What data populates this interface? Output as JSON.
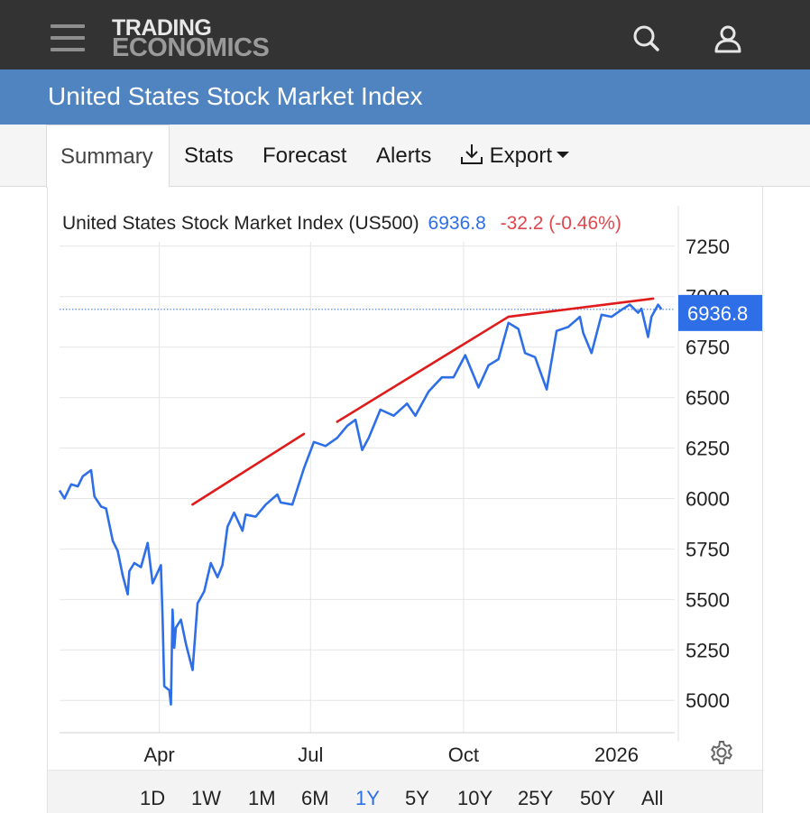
{
  "header": {
    "logo_line1": "TRADING",
    "logo_line2": "ECONOMICS",
    "menu_icon": "hamburger-menu-icon",
    "search_icon": "search-icon",
    "user_icon": "user-icon"
  },
  "title": "United States Stock Market Index",
  "tabs": [
    {
      "label": "Summary",
      "active": true
    },
    {
      "label": "Stats",
      "active": false
    },
    {
      "label": "Forecast",
      "active": false
    },
    {
      "label": "Alerts",
      "active": false
    },
    {
      "label": "Export",
      "active": false,
      "icon": "download-icon",
      "dropdown": true
    }
  ],
  "legend": {
    "name": "United States Stock Market Index (US500)",
    "last": "6936.8",
    "change": "-32.2 (-0.46%)"
  },
  "colors": {
    "series": "#2e6fe8",
    "trendlines": "#e01b1b",
    "negative_change": "#e0464c",
    "header_bg": "#333333",
    "title_bg": "#4f84c0",
    "price_tag_bg": "#2e6fe8"
  },
  "chart_data": {
    "type": "line",
    "series": [
      {
        "x": [
          "2025-01-31",
          "2025-02-03",
          "2025-02-07",
          "2025-02-11",
          "2025-02-14",
          "2025-02-19",
          "2025-02-21",
          "2025-02-25",
          "2025-02-28",
          "2025-03-04",
          "2025-03-07",
          "2025-03-10",
          "2025-03-13",
          "2025-03-14",
          "2025-03-17",
          "2025-03-21",
          "2025-03-25",
          "2025-03-28",
          "2025-04-02",
          "2025-04-03",
          "2025-04-04",
          "2025-04-07",
          "2025-04-08",
          "2025-04-09",
          "2025-04-10",
          "2025-04-11",
          "2025-04-14",
          "2025-04-17",
          "2025-04-21",
          "2025-04-24",
          "2025-04-28",
          "2025-05-02",
          "2025-05-06",
          "2025-05-09",
          "2025-05-12",
          "2025-05-16",
          "2025-05-21",
          "2025-05-23",
          "2025-05-29",
          "2025-06-04",
          "2025-06-11",
          "2025-06-13",
          "2025-06-20",
          "2025-06-27",
          "2025-07-03",
          "2025-07-10",
          "2025-07-17",
          "2025-07-23",
          "2025-07-28",
          "2025-08-01",
          "2025-08-05",
          "2025-08-12",
          "2025-08-20",
          "2025-08-28",
          "2025-09-02",
          "2025-09-10",
          "2025-09-18",
          "2025-09-25",
          "2025-10-02",
          "2025-10-10",
          "2025-10-16",
          "2025-10-22",
          "2025-10-28",
          "2025-11-03",
          "2025-11-07",
          "2025-11-13",
          "2025-11-20",
          "2025-11-26",
          "2025-12-03",
          "2025-12-10",
          "2025-12-12",
          "2025-12-17",
          "2025-12-23",
          "2025-12-29",
          "2026-01-05",
          "2026-01-09",
          "2026-01-14",
          "2026-01-16",
          "2026-01-20",
          "2026-01-22",
          "2026-01-26",
          "2026-01-28"
        ],
        "y": [
          6040,
          6000,
          6070,
          6060,
          6110,
          6140,
          6010,
          5960,
          5950,
          5790,
          5740,
          5620,
          5525,
          5640,
          5680,
          5660,
          5780,
          5580,
          5670,
          5400,
          5070,
          5050,
          4980,
          5450,
          5260,
          5360,
          5400,
          5280,
          5150,
          5480,
          5540,
          5680,
          5610,
          5670,
          5860,
          5930,
          5840,
          5920,
          5910,
          5970,
          6020,
          5980,
          5970,
          6150,
          6280,
          6260,
          6300,
          6360,
          6390,
          6240,
          6300,
          6440,
          6410,
          6470,
          6410,
          6530,
          6600,
          6600,
          6710,
          6550,
          6660,
          6690,
          6870,
          6840,
          6720,
          6700,
          6540,
          6830,
          6850,
          6900,
          6820,
          6720,
          6910,
          6900,
          6940,
          6960,
          6920,
          6940,
          6800,
          6900,
          6960,
          6936.8
        ]
      }
    ],
    "trendlines": [
      {
        "from": [
          "2025-04-21",
          5970
        ],
        "to": [
          "2025-06-27",
          6320
        ]
      },
      {
        "from": [
          "2025-07-17",
          6380
        ],
        "to": [
          "2025-10-28",
          6900
        ]
      },
      {
        "from": [
          "2025-10-28",
          6900
        ],
        "to": [
          "2026-01-23",
          6990
        ]
      }
    ],
    "last_value": 6936.8,
    "last_value_label": "6936.8",
    "y_ticks": [
      5000,
      5250,
      5500,
      5750,
      6000,
      6250,
      6500,
      6750,
      7000,
      7250
    ],
    "x_ticks": [
      {
        "label": "Apr",
        "date": "2025-04-01"
      },
      {
        "label": "Jul",
        "date": "2025-07-01"
      },
      {
        "label": "Oct",
        "date": "2025-10-01"
      },
      {
        "label": "2026",
        "date": "2026-01-01"
      }
    ],
    "xlim": [
      "2025-01-31",
      "2026-02-05"
    ],
    "ylim": [
      4840,
      7450
    ],
    "grid": true,
    "title": "",
    "xlabel": "",
    "ylabel": ""
  },
  "settings_icon": "gear-icon",
  "ranges": [
    {
      "label": "1D",
      "active": false
    },
    {
      "label": "1W",
      "active": false
    },
    {
      "label": "1M",
      "active": false
    },
    {
      "label": "6M",
      "active": false
    },
    {
      "label": "1Y",
      "active": true
    },
    {
      "label": "5Y",
      "active": false
    },
    {
      "label": "10Y",
      "active": false
    },
    {
      "label": "25Y",
      "active": false
    },
    {
      "label": "50Y",
      "active": false
    },
    {
      "label": "All",
      "active": false
    }
  ]
}
